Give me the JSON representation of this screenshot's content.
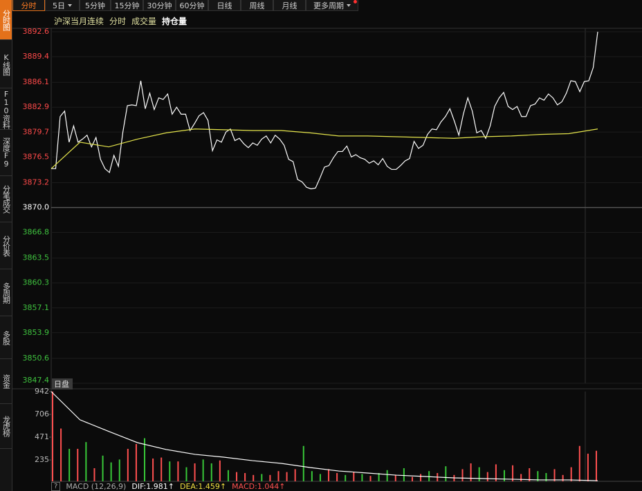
{
  "sidebar": {
    "tabs": [
      "分时图",
      "K线图",
      "F10资料",
      "深度F9",
      "分笔成交",
      "分价表",
      "多周期",
      "多股",
      "资金",
      "龙虎榜"
    ]
  },
  "toolbar": {
    "buttons": [
      "分时",
      "5日",
      "5分钟",
      "15分钟",
      "30分钟",
      "60分钟",
      "日线",
      "周线",
      "月线",
      "更多周期"
    ]
  },
  "subheader": {
    "items": [
      "沪深当月连续",
      "分时",
      "成交量",
      "持仓量"
    ]
  },
  "chart_data": [
    {
      "type": "line",
      "ylim": [
        3847.4,
        3892.6
      ],
      "yticks": [
        3892.6,
        3889.4,
        3886.1,
        3882.9,
        3879.7,
        3876.5,
        3873.2,
        {
          "value": 3870,
          "label": "3870.0"
        },
        3866.8,
        3863.5,
        3860.3,
        3857.1,
        3853.9,
        3850.6,
        3847.4
      ],
      "grid": true,
      "series": [
        {
          "color": "#ffffff",
          "values": [
            3875.0,
            3875.0,
            3881.7,
            3882.4,
            3878.4,
            3880.5,
            3878.4,
            3878.8,
            3879.3,
            3877.8,
            3879.0,
            3876.2,
            3875.0,
            3874.5,
            3876.7,
            3875.3,
            3879.7,
            3883.1,
            3883.2,
            3883.1,
            3886.3,
            3882.7,
            3884.7,
            3882.6,
            3884.1,
            3883.9,
            3884.6,
            3882.0,
            3882.9,
            3882.0,
            3882.0,
            3879.9,
            3880.8,
            3881.8,
            3882.2,
            3881.2,
            3877.3,
            3878.7,
            3878.4,
            3879.7,
            3880.1,
            3878.6,
            3878.9,
            3878.2,
            3877.7,
            3878.3,
            3878.0,
            3878.8,
            3879.2,
            3878.3,
            3879.3,
            3878.8,
            3878.0,
            3876.2,
            3875.9,
            3873.6,
            3873.3,
            3872.6,
            3872.4,
            3872.5,
            3873.8,
            3875.2,
            3875.4,
            3876.4,
            3877.2,
            3877.2,
            3877.9,
            3876.5,
            3876.8,
            3876.4,
            3876.2,
            3875.7,
            3876.0,
            3875.5,
            3876.3,
            3875.3,
            3874.9,
            3874.9,
            3875.4,
            3876.0,
            3876.3,
            3878.5,
            3877.6,
            3878.0,
            3879.4,
            3880.1,
            3880.0,
            3881.0,
            3881.7,
            3882.7,
            3881.1,
            3879.3,
            3882.0,
            3884.1,
            3882.4,
            3879.6,
            3879.9,
            3878.9,
            3880.5,
            3883.0,
            3884.1,
            3884.8,
            3883.0,
            3882.6,
            3883.0,
            3881.7,
            3881.7,
            3883.1,
            3883.3,
            3884.1,
            3883.8,
            3884.6,
            3884.1,
            3883.2,
            3883.6,
            3884.7,
            3886.3,
            3886.2,
            3884.9,
            3886.2,
            3886.3,
            3888.0,
            3892.6
          ]
        },
        {
          "color": "#e6e64c",
          "values": [
            3875.0,
            3878.4,
            3877.8,
            3878.8,
            3879.6,
            3880.1,
            3880.0,
            3879.9,
            3879.9,
            3879.6,
            3879.2,
            3879.2,
            3879.1,
            3879.0,
            3878.9,
            3879.1,
            3879.2,
            3879.4,
            3879.5,
            3880.1
          ]
        }
      ]
    },
    {
      "type": "bar",
      "label": "日盘",
      "ylim": [
        0,
        942
      ],
      "yticks": [
        235,
        471,
        706,
        942
      ],
      "series": [
        {
          "type": "bar",
          "color": "#ff5050",
          "values": [
            942,
            560,
            null,
            350,
            null,
            150,
            null,
            null,
            null,
            350,
            400,
            null,
            250,
            260,
            null,
            220,
            null,
            200,
            null,
            null,
            230,
            null,
            110,
            100,
            80,
            null,
            80,
            120,
            110,
            140,
            null,
            null,
            null,
            140,
            100,
            null,
            110,
            null,
            70,
            null,
            null,
            80,
            null,
            60,
            90,
            null,
            100,
            null,
            80,
            140,
            200,
            null,
            110,
            190,
            null,
            180,
            90,
            150,
            null,
            null,
            140,
            80,
            160,
            380,
            300,
            330
          ]
        },
        {
          "type": "bar",
          "color": "#38c938",
          "values": [
            null,
            null,
            350,
            null,
            420,
            null,
            280,
            210,
            240,
            null,
            null,
            460,
            null,
            null,
            220,
            null,
            160,
            null,
            240,
            200,
            null,
            130,
            null,
            null,
            null,
            90,
            null,
            null,
            null,
            null,
            380,
            120,
            90,
            null,
            null,
            80,
            null,
            90,
            null,
            100,
            130,
            null,
            150,
            null,
            null,
            120,
            null,
            170,
            null,
            null,
            null,
            160,
            null,
            null,
            130,
            null,
            null,
            null,
            120,
            100,
            null,
            null,
            null,
            null,
            null,
            null
          ]
        },
        {
          "type": "line",
          "color": "#ffffff",
          "values": [
            942,
            650,
            530,
            414,
            343,
            293,
            264,
            228,
            200,
            157,
            121,
            100,
            78,
            64,
            50,
            43,
            36,
            29,
            29,
            21
          ]
        }
      ]
    }
  ],
  "indicator_bar": {
    "help": "?",
    "name": "MACD (12,26,9)",
    "items": [
      "DIF:1.981↑",
      "DEA:1.459↑",
      "MACD:1.044↑"
    ]
  }
}
